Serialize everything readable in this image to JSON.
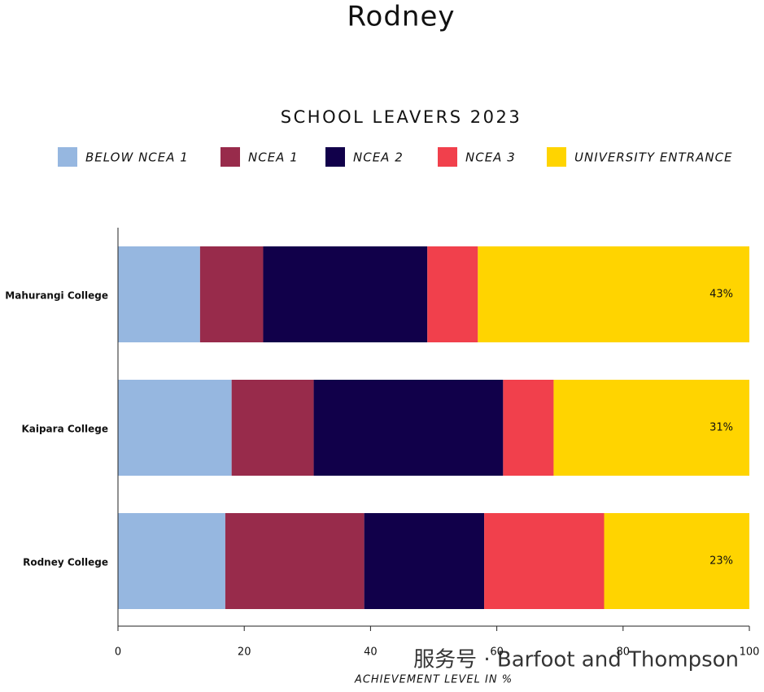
{
  "chart_data": {
    "type": "stacked_barh",
    "title": "Rodney",
    "subtitle": "SCHOOL LEAVERS 2023",
    "categories": [
      "Mahurangi College",
      "Kaipara College",
      "Rodney College"
    ],
    "series": [
      {
        "name": "BELOW NCEA 1",
        "color": "#96b7e0",
        "values": [
          13,
          18,
          17
        ]
      },
      {
        "name": "NCEA 1",
        "color": "#982b4b",
        "values": [
          10,
          13,
          22
        ]
      },
      {
        "name": "NCEA 2",
        "color": "#11004a",
        "values": [
          26,
          30,
          19
        ]
      },
      {
        "name": "NCEA 3",
        "color": "#f1404c",
        "values": [
          8,
          8,
          19
        ]
      },
      {
        "name": "UNIVERSITY ENTRANCE",
        "color": "#ffd400",
        "values": [
          43,
          31,
          23
        ],
        "value_labels": [
          "43%",
          "31%",
          "23%"
        ]
      }
    ],
    "xlim": [
      0,
      100
    ],
    "xticks": [
      0,
      20,
      40,
      60,
      80,
      100
    ],
    "xlabel": "ACHIEVEMENT LEVEL IN %",
    "watermark": "服务号 · Barfoot and Thompson"
  }
}
